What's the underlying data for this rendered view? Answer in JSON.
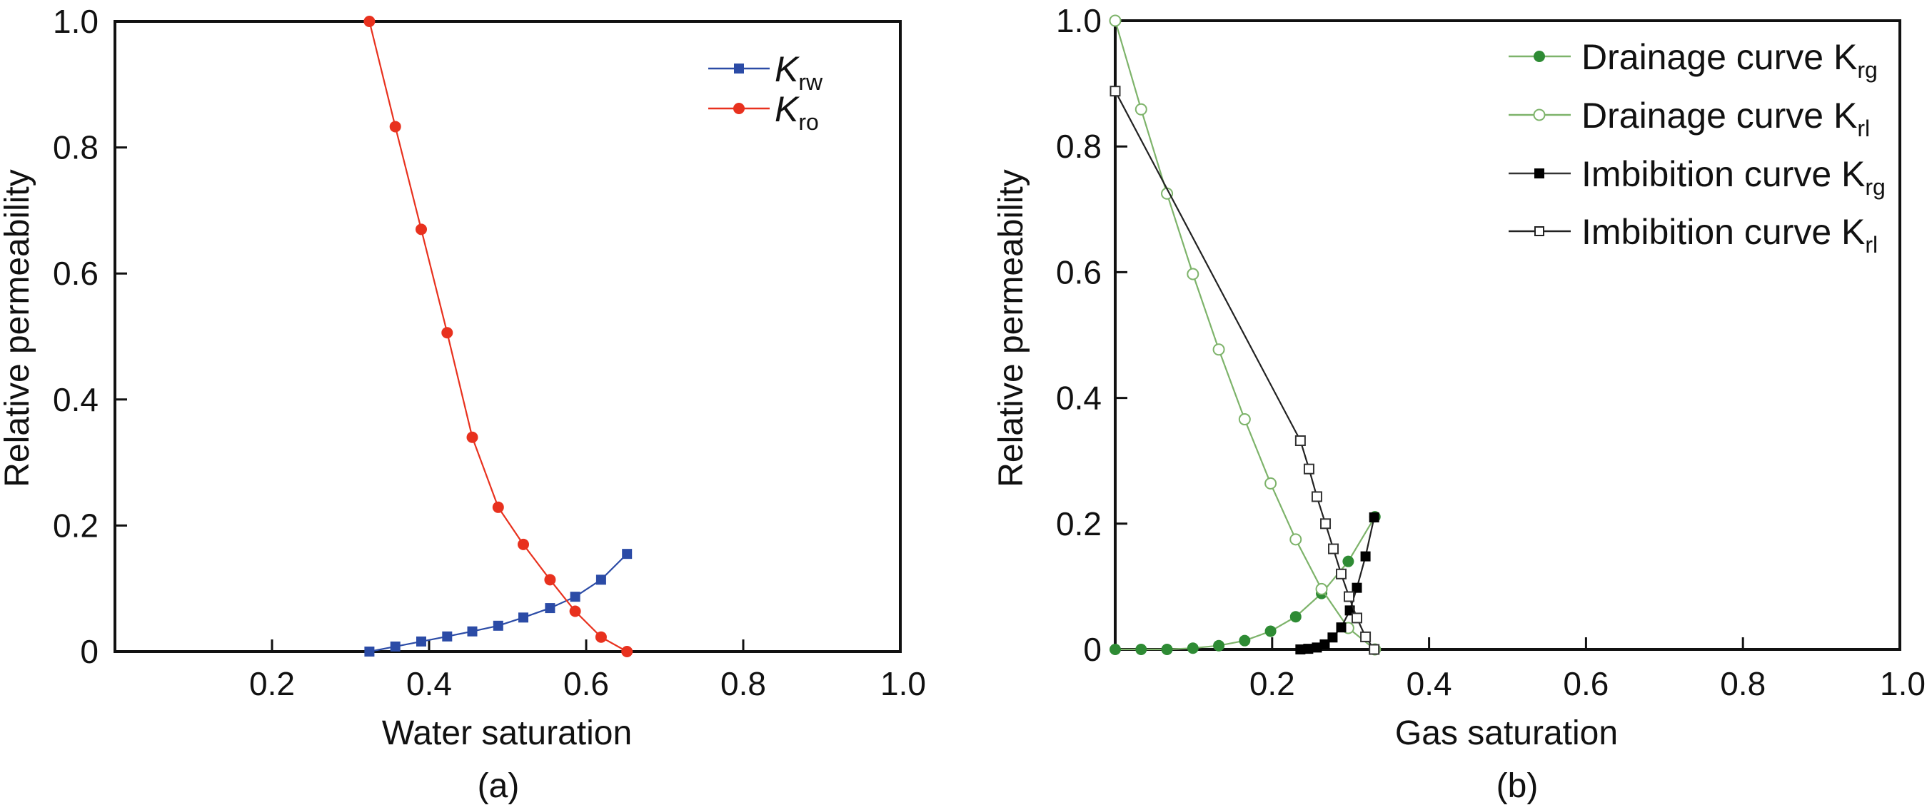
{
  "chart_data": [
    {
      "type": "line",
      "panel_label": "(a)",
      "xlabel": "Water saturation",
      "ylabel": "Relative permeability",
      "xlim": [
        0,
        1.0
      ],
      "ylim": [
        0,
        1.0
      ],
      "x_ticks": [
        "0.2",
        "0.4",
        "0.6",
        "0.8",
        "1.0"
      ],
      "x_tick_values": [
        0.2,
        0.4,
        0.6,
        0.8,
        1.0
      ],
      "y_ticks": [
        "0",
        "0.2",
        "0.4",
        "0.6",
        "0.8",
        "1.0"
      ],
      "y_tick_values": [
        0,
        0.2,
        0.4,
        0.6,
        0.8,
        1.0
      ],
      "grid": false,
      "legend_position": "top-right",
      "series": [
        {
          "name": "Krw",
          "label_main": "K",
          "label_sub": "rw",
          "color": "#2B4BA6",
          "marker": "filled-square",
          "x": [
            0.324,
            0.357,
            0.39,
            0.423,
            0.455,
            0.488,
            0.52,
            0.554,
            0.586,
            0.619,
            0.652
          ],
          "y": [
            0.0,
            0.008,
            0.016,
            0.024,
            0.032,
            0.041,
            0.054,
            0.069,
            0.087,
            0.114,
            0.155
          ]
        },
        {
          "name": "Kro",
          "label_main": "K",
          "label_sub": "ro",
          "color": "#E8311E",
          "marker": "filled-circle",
          "x": [
            0.324,
            0.357,
            0.39,
            0.423,
            0.455,
            0.488,
            0.52,
            0.554,
            0.586,
            0.619,
            0.652
          ],
          "y": [
            1.0,
            0.833,
            0.67,
            0.506,
            0.34,
            0.229,
            0.17,
            0.114,
            0.064,
            0.023,
            0.0
          ]
        }
      ]
    },
    {
      "type": "line",
      "panel_label": "(b)",
      "xlabel": "Gas saturation",
      "ylabel": "Relative permeability",
      "xlim": [
        0,
        1.0
      ],
      "ylim": [
        0,
        1.0
      ],
      "x_ticks": [
        "0.2",
        "0.4",
        "0.6",
        "0.8",
        "1.0"
      ],
      "x_tick_values": [
        0.2,
        0.4,
        0.6,
        0.8,
        1.0
      ],
      "y_ticks": [
        "0",
        "0.2",
        "0.4",
        "0.6",
        "0.8",
        "1.0"
      ],
      "y_tick_values": [
        0,
        0.2,
        0.4,
        0.6,
        0.8,
        1.0
      ],
      "grid": false,
      "legend_position": "top-right",
      "series": [
        {
          "name": "Drainage curve Krg",
          "label_main": "Drainage curve K",
          "label_sub": "rg",
          "color": "#2E8B34",
          "line_color": "#7DB36A",
          "marker": "filled-circle",
          "x": [
            0.0,
            0.033,
            0.066,
            0.099,
            0.132,
            0.165,
            0.198,
            0.23,
            0.263,
            0.297,
            0.331
          ],
          "y": [
            0.0,
            0.0,
            0.0,
            0.002,
            0.006,
            0.014,
            0.029,
            0.052,
            0.089,
            0.14,
            0.211
          ]
        },
        {
          "name": "Drainage curve Krl",
          "label_main": "Drainage curve K",
          "label_sub": "rl",
          "color": "#7DB36A",
          "line_color": "#7DB36A",
          "marker": "open-circle",
          "x": [
            0.0,
            0.033,
            0.066,
            0.099,
            0.132,
            0.165,
            0.198,
            0.23,
            0.263,
            0.297,
            0.331
          ],
          "y": [
            1.0,
            0.859,
            0.725,
            0.597,
            0.477,
            0.366,
            0.264,
            0.175,
            0.096,
            0.034,
            0.0
          ]
        },
        {
          "name": "Imbibition curve Krg",
          "label_main": "Imbibition curve K",
          "label_sub": "rg",
          "color": "#000000",
          "line_color": "#222222",
          "marker": "filled-square",
          "x": [
            0.236,
            0.246,
            0.257,
            0.267,
            0.277,
            0.288,
            0.299,
            0.308,
            0.319,
            0.33
          ],
          "y": [
            0.0,
            0.001,
            0.003,
            0.008,
            0.019,
            0.035,
            0.062,
            0.098,
            0.148,
            0.21
          ]
        },
        {
          "name": "Imbibition curve Krl",
          "label_main": "Imbibition curve K",
          "label_sub": "rl",
          "color": "#000000",
          "line_color": "#222222",
          "marker": "open-square",
          "x": [
            0.0,
            0.236,
            0.247,
            0.257,
            0.268,
            0.278,
            0.288,
            0.298,
            0.308,
            0.319,
            0.33
          ],
          "y": [
            0.888,
            0.332,
            0.287,
            0.243,
            0.2,
            0.16,
            0.12,
            0.084,
            0.05,
            0.02,
            0.0
          ]
        }
      ]
    }
  ]
}
